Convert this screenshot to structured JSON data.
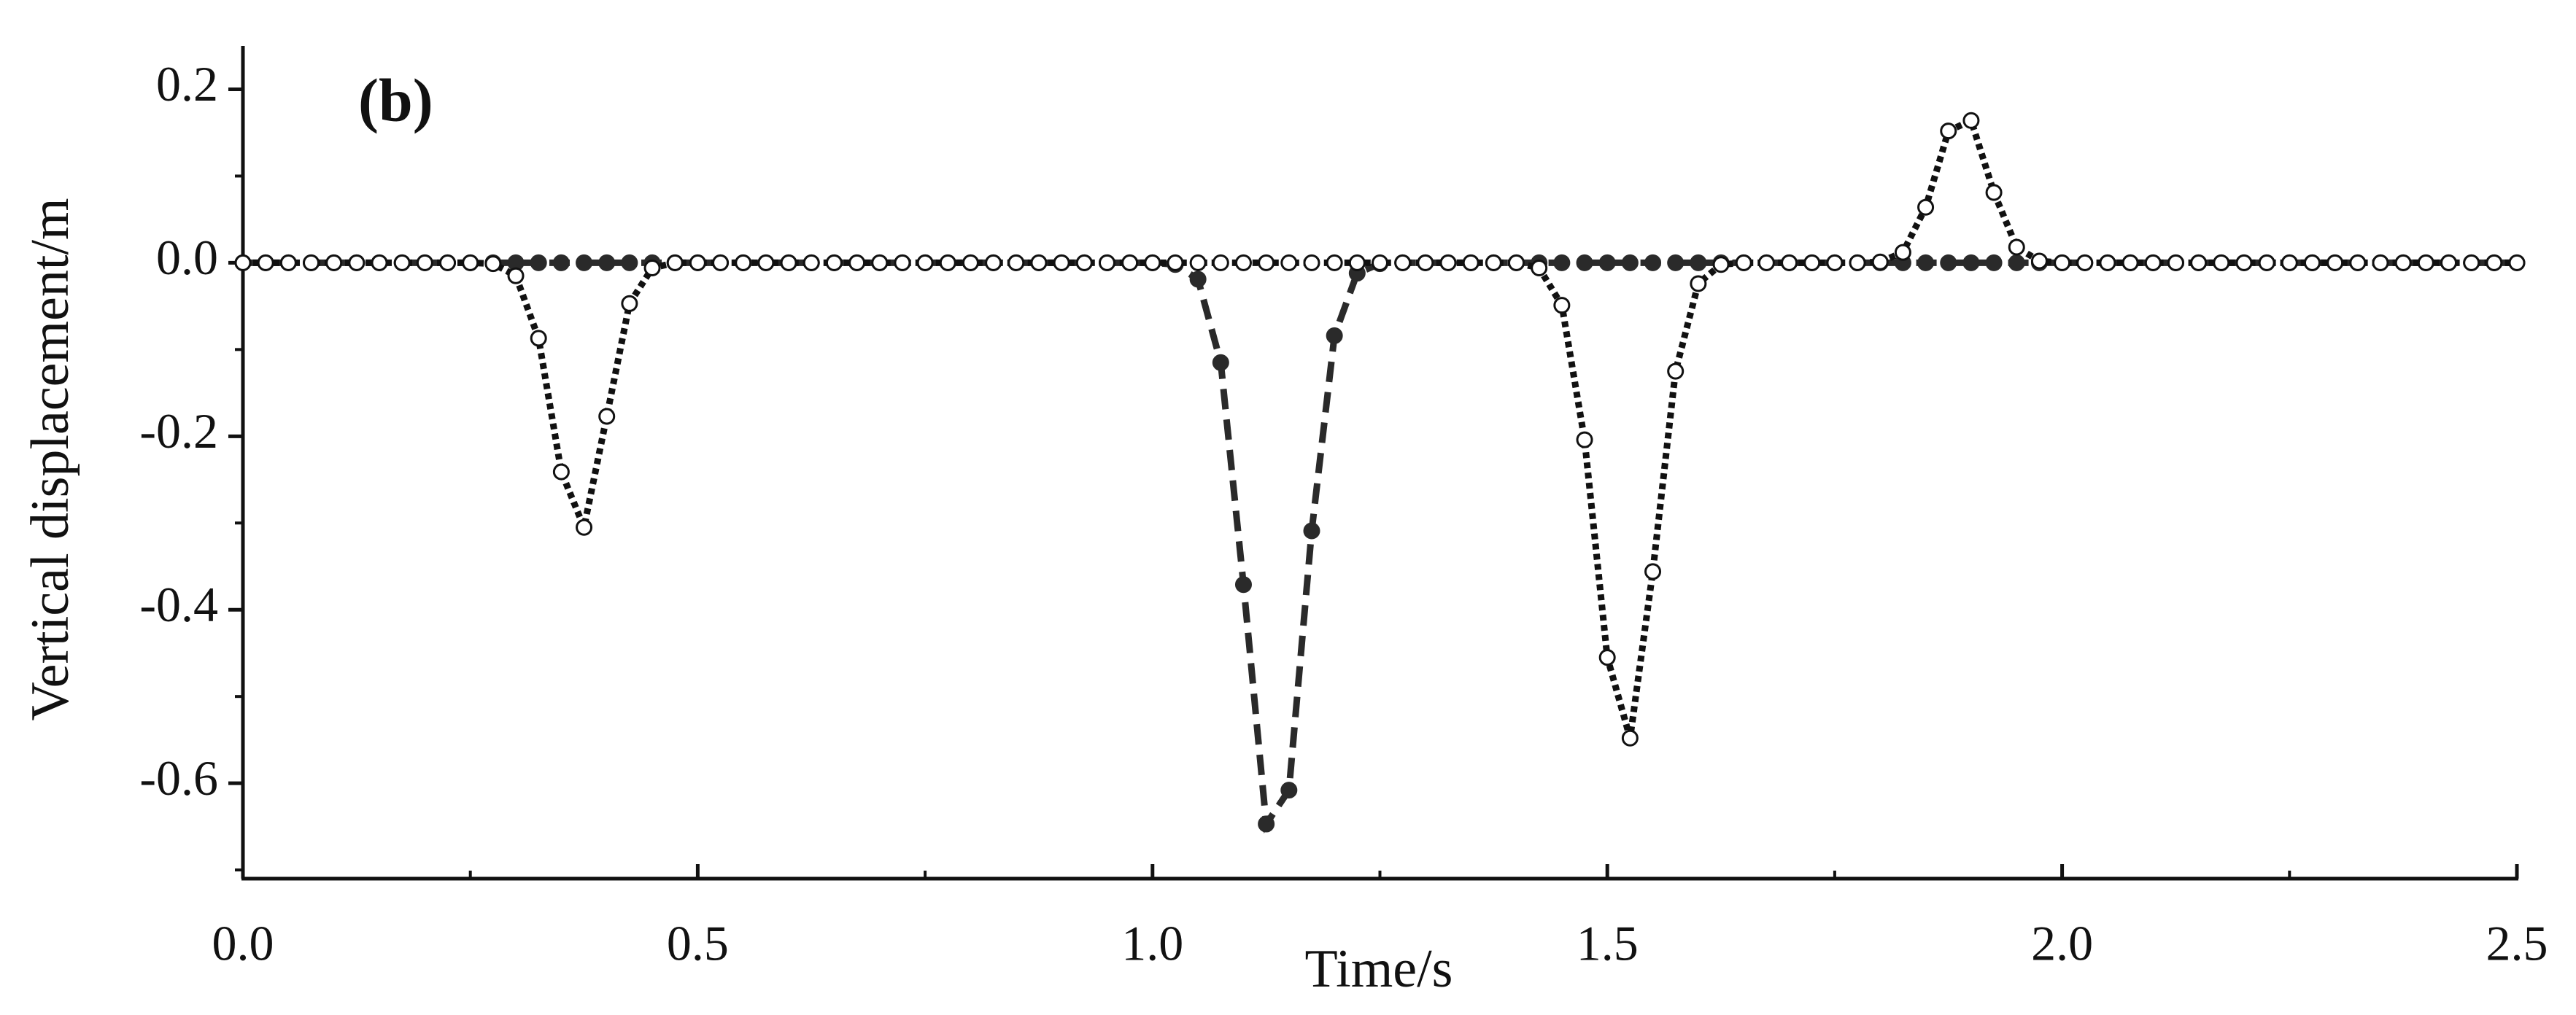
{
  "chart_data": {
    "type": "line",
    "annotation": "(b)",
    "xlabel": "Time/s",
    "ylabel": "Vertical displacement/m",
    "x": [
      0,
      0.025,
      0.05,
      0.075,
      0.1,
      0.125,
      0.15,
      0.175,
      0.2,
      0.225,
      0.25,
      0.275,
      0.3,
      0.325,
      0.35,
      0.375,
      0.4,
      0.425,
      0.45,
      0.475,
      0.5,
      0.525,
      0.55,
      0.575,
      0.6,
      0.625,
      0.65,
      0.675,
      0.7,
      0.725,
      0.75,
      0.775,
      0.8,
      0.825,
      0.85,
      0.875,
      0.9,
      0.925,
      0.95,
      0.975,
      1,
      1.025,
      1.05,
      1.075,
      1.1,
      1.125,
      1.15,
      1.175,
      1.2,
      1.225,
      1.25,
      1.275,
      1.3,
      1.325,
      1.35,
      1.375,
      1.4,
      1.425,
      1.45,
      1.475,
      1.5,
      1.525,
      1.55,
      1.575,
      1.6,
      1.625,
      1.65,
      1.675,
      1.7,
      1.725,
      1.75,
      1.775,
      1.8,
      1.825,
      1.85,
      1.875,
      1.9,
      1.925,
      1.95,
      1.975,
      2,
      2.025,
      2.05,
      2.075,
      2.1,
      2.125,
      2.15,
      2.175,
      2.2,
      2.225,
      2.25,
      2.275,
      2.3,
      2.325,
      2.35,
      2.375,
      2.4,
      2.425,
      2.45,
      2.475,
      2.5
    ],
    "series": [
      {
        "color": "#2a2a2a",
        "marker_fill": "#2a2a2a",
        "dash": "28 14",
        "values": [
          0,
          0,
          0,
          0,
          0,
          0,
          0,
          0,
          0,
          0,
          0,
          0,
          0,
          0,
          0,
          0,
          0,
          0,
          0,
          0,
          0,
          0,
          0,
          0,
          0,
          0,
          0,
          0,
          0,
          0,
          0,
          0,
          0,
          0,
          0,
          0,
          0,
          0,
          0,
          0,
          0,
          -0.002,
          -0.019,
          -0.115,
          -0.371,
          -0.647,
          -0.608,
          -0.309,
          -0.084,
          -0.012,
          -0.001,
          0,
          0,
          0,
          0,
          0,
          0,
          0,
          0,
          0,
          0,
          0,
          0,
          0,
          0,
          0,
          0,
          0,
          0,
          0,
          0,
          0,
          0,
          0,
          0,
          0,
          0,
          0,
          0,
          0,
          0,
          0,
          0,
          0,
          0,
          0,
          0,
          0,
          0,
          0,
          0,
          0,
          0,
          0,
          0,
          0,
          0,
          0,
          0,
          0,
          0
        ]
      },
      {
        "color": "#111111",
        "marker_fill": "#ffffff",
        "dash": "8 6",
        "values": [
          0,
          0,
          0,
          0,
          0,
          0,
          0,
          0,
          0,
          0,
          0,
          -0.001,
          -0.015,
          -0.087,
          -0.241,
          -0.305,
          -0.177,
          -0.047,
          -0.006,
          0,
          0,
          0,
          0,
          0,
          0,
          0,
          0,
          0,
          0,
          0,
          0,
          0,
          0,
          0,
          0,
          0,
          0,
          0,
          0,
          0,
          0,
          0,
          0,
          0,
          0,
          0,
          0,
          0,
          0,
          0,
          0,
          0,
          0,
          0,
          0,
          0,
          0,
          -0.006,
          -0.049,
          -0.204,
          -0.455,
          -0.548,
          -0.356,
          -0.125,
          -0.024,
          -0.002,
          0,
          0,
          0,
          0,
          0,
          0,
          0.001,
          0.012,
          0.064,
          0.152,
          0.164,
          0.081,
          0.018,
          0.002,
          0,
          0,
          0,
          0,
          0,
          0,
          0,
          0,
          0,
          0,
          0,
          0,
          0,
          0,
          0,
          0,
          0,
          0,
          0,
          0,
          0
        ]
      }
    ],
    "xlim": [
      0,
      2.5
    ],
    "ylim": [
      -0.71,
      0.25
    ],
    "xticks": [
      {
        "value": 0,
        "label": "0.0"
      },
      0.5,
      {
        "value": 1,
        "label": "1.0"
      },
      1.5,
      {
        "value": 2,
        "label": "2.0"
      },
      2.5
    ],
    "yticks": [
      0.2,
      {
        "value": 0,
        "label": "0.0"
      },
      -0.2,
      -0.4,
      -0.6
    ],
    "xminorticks": [
      0.25,
      0.75,
      1.25,
      1.75,
      2.25
    ],
    "yminorticks": [
      0.1,
      -0.1,
      -0.3,
      -0.5,
      -0.7
    ]
  }
}
